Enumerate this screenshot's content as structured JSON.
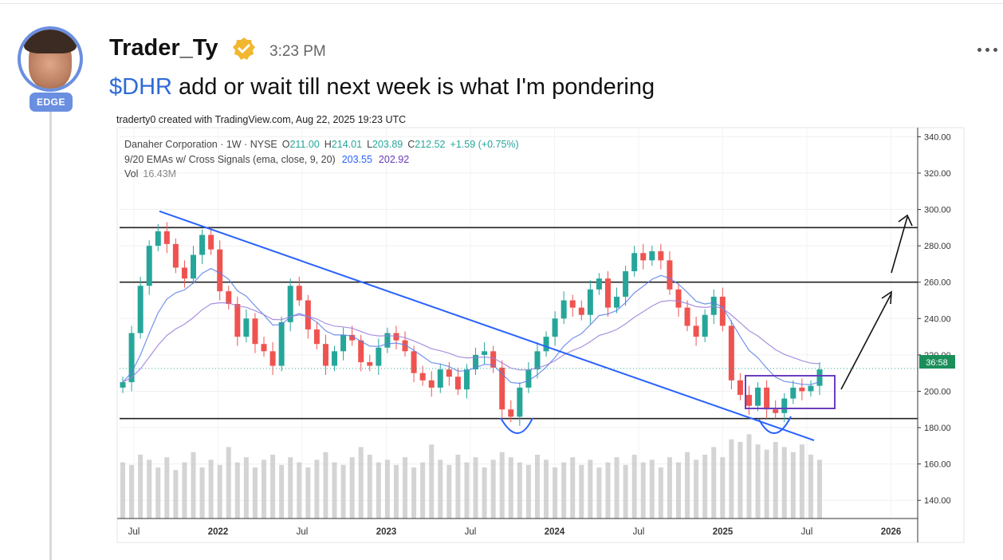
{
  "post": {
    "username": "Trader_Ty",
    "badge": "EDGE",
    "time": "3:23 PM",
    "cashtag": "$DHR",
    "message_rest": " add or wait till next week is what I'm pondering"
  },
  "icons": {
    "verified": "verified-check-icon",
    "more": "more-dots-icon"
  },
  "colors": {
    "accent": "#6a8fe0",
    "link": "#2f6ad6",
    "verified": "#f2b731",
    "up": "#26a69a",
    "down": "#ef5350"
  },
  "chart_data": {
    "type": "line",
    "watermark": "traderty0 created with TradingView.com, Aug 22, 2025 19:23 UTC",
    "legend": {
      "line1_name": "Danaher Corporation · 1W · NYSE",
      "o_label": "O",
      "o_value": "211.00",
      "h_label": "H",
      "h_value": "214.01",
      "l_label": "L",
      "l_value": "203.89",
      "c_label": "C",
      "c_value": "212.52",
      "change": "+1.59 (+0.75%)",
      "line2_name": "9/20 EMAs w/ Cross Signals (ema, close, 9, 20)",
      "ema9": "203.55",
      "ema20": "202.92",
      "vol_label": "Vol",
      "vol_value": "16.43M"
    },
    "y_ticks": [
      "340.00",
      "320.00",
      "300.00",
      "280.00",
      "260.00",
      "240.00",
      "220.00",
      "200.00",
      "180.00",
      "160.00",
      "140.00"
    ],
    "ylim": [
      130,
      345
    ],
    "x_ticks": [
      "Jul",
      "2022",
      "Jul",
      "2023",
      "Jul",
      "2024",
      "Jul",
      "2025",
      "Jul",
      "2026"
    ],
    "price_label": "36:58",
    "last_price": 212.52,
    "series": [
      {
        "values": [
          205,
          232,
          258,
          280,
          288,
          281,
          268,
          262,
          275,
          286,
          278,
          255,
          248,
          230,
          240,
          226,
          222,
          214,
          238,
          258,
          250,
          234,
          226,
          214,
          222,
          231,
          228,
          216,
          214,
          224,
          232,
          228,
          222,
          210,
          206,
          202,
          212,
          208,
          201,
          212,
          220,
          222,
          213,
          190,
          186,
          202,
          212,
          222,
          230,
          240,
          250,
          246,
          242,
          256,
          262,
          246,
          252,
          266,
          276,
          272,
          277,
          272,
          256,
          246,
          236,
          230,
          242,
          252,
          236,
          206,
          198,
          192,
          202,
          190,
          188,
          196,
          202,
          200,
          203,
          212
        ]
      }
    ],
    "volume": [
      44,
      42,
      50,
      46,
      40,
      48,
      38,
      44,
      52,
      40,
      46,
      42,
      56,
      44,
      48,
      40,
      46,
      50,
      42,
      48,
      44,
      40,
      46,
      52,
      44,
      42,
      48,
      56,
      50,
      44,
      46,
      42,
      48,
      40,
      44,
      58,
      46,
      42,
      50,
      44,
      48,
      40,
      46,
      52,
      48,
      44,
      42,
      50,
      46,
      40,
      44,
      48,
      42,
      46,
      40,
      44,
      48,
      42,
      50,
      44,
      46,
      40,
      48,
      44,
      52,
      46,
      50,
      56,
      48,
      62,
      60,
      66,
      58,
      54,
      60,
      56,
      52,
      58,
      50,
      46
    ],
    "horizontal_levels": [
      290,
      260,
      185
    ],
    "trendline": {
      "from": [
        0.02,
        299
      ],
      "to": [
        0.99,
        173
      ]
    }
  }
}
